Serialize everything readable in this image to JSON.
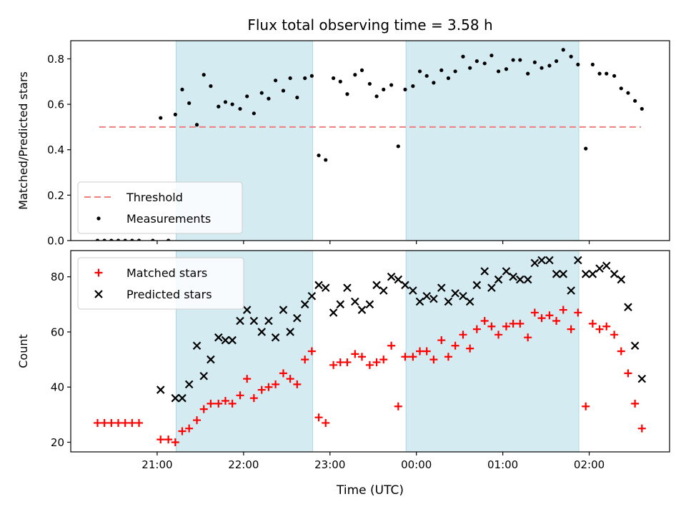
{
  "chart_data": {
    "title": "Flux total observing time = 3.58 h",
    "xlabel": "Time (UTC)",
    "x_ticks": [
      "21:00",
      "22:00",
      "23:00",
      "00:00",
      "01:00",
      "02:00"
    ],
    "x_tick_values": [
      21.0,
      22.0,
      23.0,
      24.0,
      25.0,
      26.0
    ],
    "xlim": [
      20.0,
      26.93
    ],
    "highlight_spans": [
      [
        21.22,
        22.8
      ],
      [
        23.88,
        25.88
      ]
    ],
    "colors": {
      "span": "#add8e6",
      "threshold": "#ef7f7f",
      "measurements": "#000000",
      "matched": "#ff0000",
      "predicted": "#000000"
    },
    "panels": [
      {
        "type": "scatter",
        "ylabel": "Matched/Predicted stars",
        "ylim": [
          0.0,
          0.88
        ],
        "y_ticks": [
          "0.0",
          "0.2",
          "0.4",
          "0.6",
          "0.8"
        ],
        "y_tick_values": [
          0.0,
          0.2,
          0.4,
          0.6,
          0.8
        ],
        "legend_position": "lower-left",
        "threshold": {
          "name": "Threshold",
          "value": 0.5,
          "x_range": [
            20.33,
            26.6
          ]
        },
        "series": [
          {
            "name": "Measurements",
            "marker": "dot",
            "x": [
              20.31,
              20.39,
              20.47,
              20.55,
              20.63,
              20.71,
              20.79,
              20.95,
              21.04,
              21.13,
              21.21,
              21.29,
              21.37,
              21.46,
              21.54,
              21.62,
              21.71,
              21.79,
              21.87,
              21.96,
              22.04,
              22.12,
              22.21,
              22.29,
              22.37,
              22.46,
              22.54,
              22.62,
              22.71,
              22.79,
              22.87,
              22.95,
              23.04,
              23.12,
              23.2,
              23.29,
              23.37,
              23.46,
              23.54,
              23.62,
              23.71,
              23.79,
              23.87,
              23.96,
              24.04,
              24.12,
              24.2,
              24.29,
              24.37,
              24.45,
              24.54,
              24.62,
              24.7,
              24.79,
              24.87,
              24.95,
              25.04,
              25.12,
              25.2,
              25.29,
              25.37,
              25.45,
              25.54,
              25.62,
              25.7,
              25.79,
              25.87,
              25.96,
              26.04,
              26.12,
              26.2,
              26.29,
              26.37,
              26.45,
              26.53,
              26.61
            ],
            "y": [
              0.0,
              0.0,
              0.0,
              0.0,
              0.0,
              0.0,
              0.0,
              0.0,
              0.54,
              0.0,
              0.555,
              0.665,
              0.605,
              0.51,
              0.73,
              0.68,
              0.59,
              0.61,
              0.6,
              0.58,
              0.635,
              0.56,
              0.65,
              0.625,
              0.705,
              0.66,
              0.715,
              0.63,
              0.715,
              0.725,
              0.375,
              0.355,
              0.715,
              0.7,
              0.645,
              0.73,
              0.75,
              0.69,
              0.635,
              0.665,
              0.685,
              0.415,
              0.665,
              0.68,
              0.745,
              0.725,
              0.695,
              0.75,
              0.715,
              0.745,
              0.81,
              0.76,
              0.79,
              0.78,
              0.815,
              0.745,
              0.755,
              0.795,
              0.795,
              0.735,
              0.785,
              0.76,
              0.77,
              0.79,
              0.84,
              0.81,
              0.775,
              0.405,
              0.775,
              0.735,
              0.735,
              0.725,
              0.67,
              0.65,
              0.615,
              0.58
            ]
          }
        ]
      },
      {
        "type": "scatter",
        "ylabel": "Count",
        "ylim": [
          16.5,
          89.5
        ],
        "y_ticks": [
          "20",
          "40",
          "60",
          "80"
        ],
        "y_tick_values": [
          20,
          40,
          60,
          80
        ],
        "legend_position": "upper-left",
        "series": [
          {
            "name": "Matched stars",
            "marker": "plus",
            "x": [
              20.31,
              20.39,
              20.47,
              20.55,
              20.63,
              20.71,
              20.79,
              21.04,
              21.13,
              21.21,
              21.29,
              21.37,
              21.46,
              21.54,
              21.62,
              21.71,
              21.79,
              21.87,
              21.96,
              22.04,
              22.12,
              22.21,
              22.29,
              22.37,
              22.46,
              22.54,
              22.62,
              22.71,
              22.79,
              22.87,
              22.95,
              23.04,
              23.12,
              23.2,
              23.29,
              23.37,
              23.46,
              23.54,
              23.62,
              23.71,
              23.79,
              23.87,
              23.96,
              24.04,
              24.12,
              24.2,
              24.29,
              24.37,
              24.45,
              24.54,
              24.62,
              24.7,
              24.79,
              24.87,
              24.95,
              25.04,
              25.12,
              25.2,
              25.29,
              25.37,
              25.45,
              25.54,
              25.62,
              25.7,
              25.79,
              25.87,
              25.96,
              26.04,
              26.12,
              26.2,
              26.29,
              26.37,
              26.45,
              26.53,
              26.61
            ],
            "y": [
              27,
              27,
              27,
              27,
              27,
              27,
              27,
              21,
              21,
              20,
              24,
              25,
              28,
              32,
              34,
              34,
              35,
              34,
              37,
              43,
              36,
              39,
              40,
              41,
              45,
              43,
              41,
              50,
              53,
              29,
              27,
              48,
              49,
              49,
              52,
              51,
              48,
              49,
              50,
              55,
              33,
              51,
              51,
              53,
              53,
              50,
              57,
              51,
              55,
              59,
              54,
              61,
              64,
              62,
              59,
              62,
              63,
              63,
              58,
              67,
              65,
              66,
              64,
              68,
              61,
              67,
              33,
              63,
              61,
              62,
              59,
              53,
              45,
              34,
              25
            ]
          },
          {
            "name": "Predicted stars",
            "marker": "x",
            "x": [
              21.04,
              21.21,
              21.29,
              21.37,
              21.46,
              21.54,
              21.62,
              21.71,
              21.79,
              21.87,
              21.96,
              22.04,
              22.12,
              22.21,
              22.29,
              22.37,
              22.46,
              22.54,
              22.62,
              22.71,
              22.79,
              22.87,
              22.95,
              23.04,
              23.12,
              23.2,
              23.29,
              23.37,
              23.46,
              23.54,
              23.62,
              23.71,
              23.79,
              23.87,
              23.96,
              24.04,
              24.12,
              24.2,
              24.29,
              24.37,
              24.45,
              24.54,
              24.62,
              24.7,
              24.79,
              24.87,
              24.95,
              25.04,
              25.12,
              25.2,
              25.29,
              25.37,
              25.45,
              25.54,
              25.62,
              25.7,
              25.79,
              25.87,
              25.96,
              26.04,
              26.12,
              26.2,
              26.29,
              26.37,
              26.45,
              26.53,
              26.61
            ],
            "y": [
              39,
              36,
              36,
              41,
              55,
              44,
              50,
              58,
              57,
              57,
              64,
              68,
              64,
              60,
              64,
              58,
              68,
              60,
              65,
              70,
              73,
              77,
              76,
              67,
              70,
              76,
              71,
              68,
              70,
              77,
              75,
              80,
              79,
              77,
              75,
              71,
              73,
              72,
              76,
              71,
              74,
              73,
              71,
              77,
              82,
              76,
              79,
              82,
              80,
              79,
              79,
              85,
              86,
              86,
              81,
              81,
              75,
              86,
              81,
              81,
              83,
              84,
              81,
              79,
              69,
              55,
              43
            ]
          }
        ]
      }
    ]
  }
}
